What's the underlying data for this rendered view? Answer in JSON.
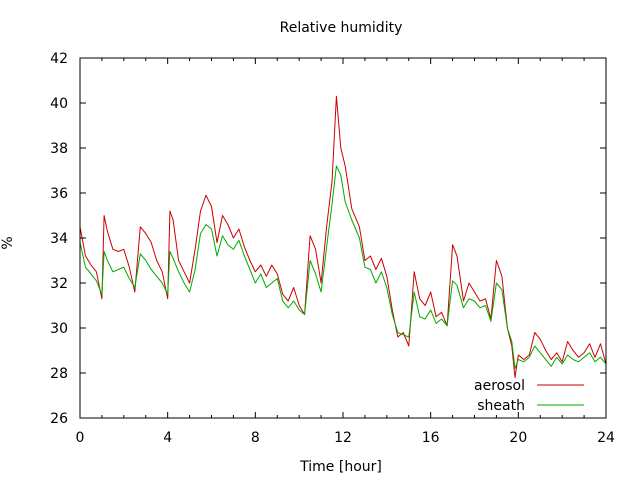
{
  "chart_data": {
    "type": "line",
    "title": "Relative humidity",
    "xlabel": "Time [hour]",
    "ylabel": "%",
    "xlim": [
      0,
      24
    ],
    "ylim": [
      26,
      42
    ],
    "xticks": [
      0,
      4,
      8,
      12,
      16,
      20,
      24
    ],
    "yticks": [
      26,
      28,
      30,
      32,
      34,
      36,
      38,
      40,
      42
    ],
    "grid": false,
    "legend_position": "bottom-right",
    "series": [
      {
        "name": "aerosol",
        "color": "#cc0000",
        "x": [
          0,
          0.25,
          0.5,
          0.75,
          1,
          1.1,
          1.25,
          1.5,
          1.75,
          2,
          2.25,
          2.5,
          2.75,
          3,
          3.25,
          3.5,
          3.75,
          4,
          4.1,
          4.25,
          4.5,
          4.75,
          5,
          5.25,
          5.5,
          5.75,
          6,
          6.25,
          6.5,
          6.75,
          7,
          7.25,
          7.5,
          7.75,
          8,
          8.25,
          8.5,
          8.75,
          9,
          9.25,
          9.5,
          9.75,
          10,
          10.25,
          10.5,
          10.75,
          11,
          11.25,
          11.5,
          11.7,
          11.9,
          12.1,
          12.4,
          12.75,
          13,
          13.25,
          13.5,
          13.75,
          14,
          14.25,
          14.5,
          14.75,
          15,
          15.25,
          15.5,
          15.75,
          16,
          16.25,
          16.5,
          16.75,
          17,
          17.2,
          17.5,
          17.75,
          18,
          18.25,
          18.5,
          18.75,
          19,
          19.25,
          19.5,
          19.7,
          19.85,
          20,
          20.25,
          20.5,
          20.75,
          21,
          21.25,
          21.5,
          21.75,
          22,
          22.25,
          22.5,
          22.75,
          23,
          23.25,
          23.5,
          23.75,
          24
        ],
        "values": [
          34.5,
          33.2,
          32.8,
          32.5,
          31.3,
          35.0,
          34.3,
          33.5,
          33.4,
          33.5,
          32.7,
          31.6,
          34.5,
          34.2,
          33.8,
          33.0,
          32.5,
          31.3,
          35.2,
          34.8,
          33.0,
          32.5,
          32.0,
          33.5,
          35.2,
          35.9,
          35.4,
          33.8,
          35.0,
          34.6,
          34.0,
          34.4,
          33.6,
          33.0,
          32.5,
          32.8,
          32.3,
          32.8,
          32.4,
          31.5,
          31.2,
          31.8,
          31.0,
          30.6,
          34.1,
          33.5,
          32.0,
          34.5,
          36.5,
          40.3,
          38.0,
          37.2,
          35.3,
          34.5,
          33.0,
          33.2,
          32.6,
          33.1,
          32.3,
          30.8,
          29.6,
          29.8,
          29.2,
          32.5,
          31.3,
          31.0,
          31.6,
          30.5,
          30.7,
          30.1,
          33.7,
          33.2,
          31.2,
          32.0,
          31.6,
          31.2,
          31.3,
          30.4,
          33.0,
          32.3,
          30.0,
          29.2,
          27.8,
          28.8,
          28.6,
          28.8,
          29.8,
          29.5,
          29.0,
          28.6,
          28.9,
          28.5,
          29.4,
          29.0,
          28.7,
          28.9,
          29.3,
          28.7,
          29.3,
          28.4
        ]
      },
      {
        "name": "sheath",
        "color": "#00aa00",
        "x": [
          0,
          0.25,
          0.5,
          0.75,
          1,
          1.1,
          1.25,
          1.5,
          1.75,
          2,
          2.25,
          2.5,
          2.75,
          3,
          3.25,
          3.5,
          3.75,
          4,
          4.1,
          4.25,
          4.5,
          4.75,
          5,
          5.25,
          5.5,
          5.75,
          6,
          6.25,
          6.5,
          6.75,
          7,
          7.25,
          7.5,
          7.75,
          8,
          8.25,
          8.5,
          8.75,
          9,
          9.25,
          9.5,
          9.75,
          10,
          10.25,
          10.5,
          10.75,
          11,
          11.25,
          11.5,
          11.7,
          11.9,
          12.1,
          12.4,
          12.75,
          13,
          13.25,
          13.5,
          13.75,
          14,
          14.25,
          14.5,
          14.75,
          15,
          15.25,
          15.5,
          15.75,
          16,
          16.25,
          16.5,
          16.75,
          17,
          17.2,
          17.5,
          17.75,
          18,
          18.25,
          18.5,
          18.75,
          19,
          19.25,
          19.5,
          19.7,
          19.85,
          20,
          20.25,
          20.5,
          20.75,
          21,
          21.25,
          21.5,
          21.75,
          22,
          22.25,
          22.5,
          22.75,
          23,
          23.25,
          23.5,
          23.75,
          24
        ],
        "values": [
          33.8,
          32.7,
          32.4,
          32.1,
          31.5,
          33.4,
          33.0,
          32.5,
          32.6,
          32.7,
          32.2,
          31.8,
          33.3,
          33.0,
          32.6,
          32.3,
          32.0,
          31.5,
          33.4,
          33.1,
          32.5,
          32.0,
          31.6,
          32.6,
          34.2,
          34.6,
          34.4,
          33.2,
          34.1,
          33.7,
          33.5,
          33.9,
          33.2,
          32.6,
          32.0,
          32.4,
          31.8,
          32.0,
          32.2,
          31.2,
          30.9,
          31.2,
          30.8,
          30.6,
          33.0,
          32.4,
          31.6,
          33.6,
          35.5,
          37.2,
          36.8,
          35.6,
          34.8,
          34.0,
          32.7,
          32.6,
          32.0,
          32.5,
          31.8,
          30.6,
          29.8,
          29.7,
          29.6,
          31.6,
          30.5,
          30.4,
          30.8,
          30.2,
          30.4,
          30.1,
          32.1,
          31.9,
          30.9,
          31.3,
          31.2,
          30.9,
          31.0,
          30.3,
          32.0,
          31.7,
          30.0,
          29.4,
          28.2,
          28.6,
          28.5,
          28.7,
          29.2,
          28.9,
          28.6,
          28.3,
          28.7,
          28.4,
          28.8,
          28.6,
          28.5,
          28.7,
          28.9,
          28.5,
          28.7,
          28.4
        ]
      }
    ]
  }
}
